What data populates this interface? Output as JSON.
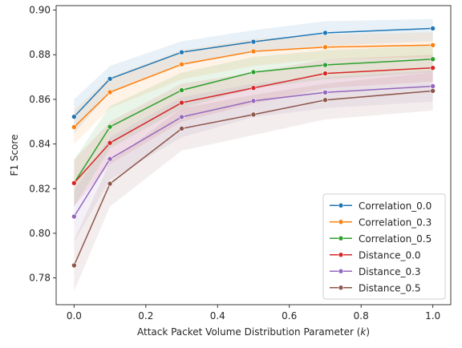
{
  "chart_data": {
    "type": "line",
    "xlabel": "Attack Packet Volume Distribution Parameter (k)",
    "ylabel": "F1 Score",
    "xlim": [
      -0.05,
      1.05
    ],
    "ylim": [
      0.768,
      0.902
    ],
    "xticks": [
      0.0,
      0.2,
      0.4,
      0.6,
      0.8,
      1.0
    ],
    "xtick_labels": [
      "0.0",
      "0.2",
      "0.4",
      "0.6",
      "0.8",
      "1.0"
    ],
    "yticks": [
      0.78,
      0.8,
      0.82,
      0.84,
      0.86,
      0.88,
      0.9
    ],
    "ytick_labels": [
      "0.78",
      "0.80",
      "0.82",
      "0.84",
      "0.86",
      "0.88",
      "0.90"
    ],
    "grid": false,
    "legend_position": "lower right",
    "x": [
      0.0,
      0.1,
      0.3,
      0.5,
      0.7,
      1.0
    ],
    "series": [
      {
        "name": "Correlation_0.0",
        "color": "#1f77b4",
        "values": [
          0.8522,
          0.8692,
          0.8811,
          0.8858,
          0.8898,
          0.8918
        ],
        "lower": [
          0.845,
          0.863,
          0.876,
          0.881,
          0.884,
          0.886
        ],
        "upper": [
          0.86,
          0.875,
          0.886,
          0.891,
          0.895,
          0.896
        ]
      },
      {
        "name": "Correlation_0.3",
        "color": "#ff7f0e",
        "values": [
          0.8476,
          0.8632,
          0.8757,
          0.8815,
          0.8834,
          0.8843
        ],
        "lower": [
          0.84,
          0.856,
          0.869,
          0.875,
          0.878,
          0.879
        ],
        "upper": [
          0.855,
          0.87,
          0.882,
          0.887,
          0.889,
          0.89
        ]
      },
      {
        "name": "Correlation_0.5",
        "color": "#2ca02c",
        "values": [
          0.8225,
          0.8477,
          0.8641,
          0.8722,
          0.8754,
          0.878
        ],
        "lower": [
          0.812,
          0.838,
          0.856,
          0.865,
          0.869,
          0.872
        ],
        "upper": [
          0.833,
          0.857,
          0.872,
          0.879,
          0.882,
          0.884
        ]
      },
      {
        "name": "Distance_0.0",
        "color": "#d62728",
        "values": [
          0.8225,
          0.8405,
          0.8585,
          0.8651,
          0.8716,
          0.8741
        ],
        "lower": [
          0.812,
          0.831,
          0.85,
          0.858,
          0.865,
          0.868
        ],
        "upper": [
          0.833,
          0.85,
          0.867,
          0.872,
          0.878,
          0.88
        ]
      },
      {
        "name": "Distance_0.3",
        "color": "#9467bd",
        "values": [
          0.8075,
          0.8333,
          0.8521,
          0.8593,
          0.8631,
          0.8659
        ],
        "lower": [
          0.796,
          0.824,
          0.843,
          0.852,
          0.856,
          0.859
        ],
        "upper": [
          0.819,
          0.843,
          0.861,
          0.867,
          0.87,
          0.873
        ]
      },
      {
        "name": "Distance_0.5",
        "color": "#8c564b",
        "values": [
          0.7856,
          0.8222,
          0.8469,
          0.8532,
          0.8597,
          0.8638
        ],
        "lower": [
          0.774,
          0.812,
          0.837,
          0.844,
          0.851,
          0.855
        ],
        "upper": [
          0.797,
          0.832,
          0.856,
          0.862,
          0.867,
          0.872
        ]
      }
    ]
  }
}
